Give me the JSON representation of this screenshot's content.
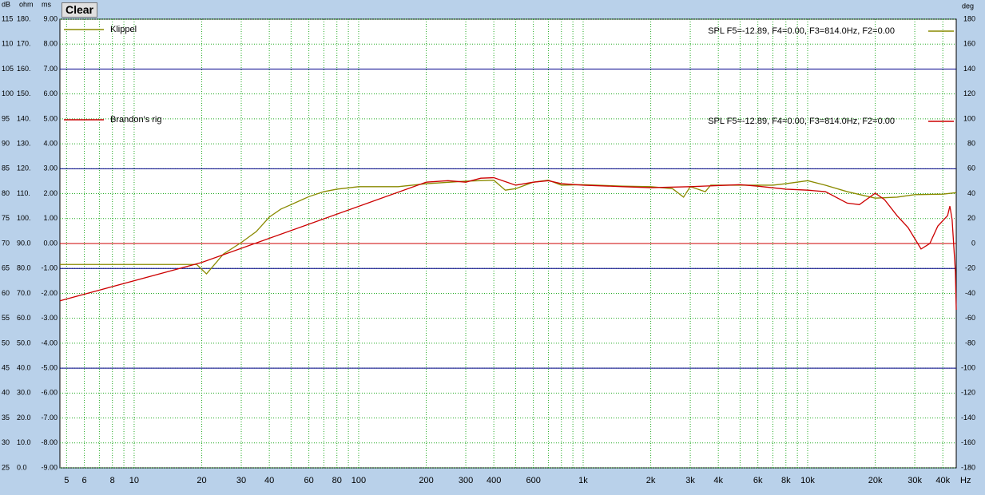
{
  "toolbar": {
    "clear": "Clear"
  },
  "chart_data": {
    "type": "line",
    "xscale": "log",
    "xlabel": "Hz",
    "axis_headers": {
      "db": "dB",
      "ohm": "ohm",
      "ms": "ms",
      "deg": "deg"
    },
    "xlim": [
      4.67,
      45900
    ],
    "xticks": [
      5,
      6,
      8,
      10,
      20,
      30,
      40,
      60,
      80,
      100,
      200,
      300,
      400,
      600,
      {
        "value": 1000,
        "label": "1k"
      },
      {
        "value": 2000,
        "label": "2k"
      },
      {
        "value": 3000,
        "label": "3k"
      },
      {
        "value": 4000,
        "label": "4k"
      },
      {
        "value": 6000,
        "label": "6k"
      },
      {
        "value": 8000,
        "label": "8k"
      },
      {
        "value": 10000,
        "label": "10k"
      },
      {
        "value": 20000,
        "label": "20k"
      },
      {
        "value": 30000,
        "label": "30k"
      },
      {
        "value": 40000,
        "label": "40k"
      }
    ],
    "xminorticks": [
      7,
      9,
      50,
      70,
      90,
      500,
      700,
      800,
      900,
      5000,
      7000,
      9000
    ],
    "ylim": [
      25,
      115
    ],
    "yticks": [
      115,
      110,
      105,
      100,
      95,
      90,
      85,
      80,
      75,
      70,
      65,
      60,
      55,
      50,
      45,
      40,
      35,
      30,
      25
    ],
    "ohmlim": [
      0,
      180
    ],
    "ohmticks": [
      {
        "value": 180,
        "label": "180."
      },
      {
        "value": 170,
        "label": "170."
      },
      {
        "value": 160,
        "label": "160."
      },
      {
        "value": 150,
        "label": "150."
      },
      {
        "value": 140,
        "label": "140."
      },
      {
        "value": 130,
        "label": "130."
      },
      {
        "value": 120,
        "label": "120."
      },
      {
        "value": 110,
        "label": "110."
      },
      {
        "value": 100,
        "label": "100."
      },
      {
        "value": 90,
        "label": "90.0"
      },
      {
        "value": 80,
        "label": "80.0"
      },
      {
        "value": 70,
        "label": "70.0"
      },
      {
        "value": 60,
        "label": "60.0"
      },
      {
        "value": 50,
        "label": "50.0"
      },
      {
        "value": 40,
        "label": "40.0"
      },
      {
        "value": 30,
        "label": "30.0"
      },
      {
        "value": 20,
        "label": "20.0"
      },
      {
        "value": 10,
        "label": "10.0"
      },
      {
        "value": 0,
        "label": "0.0"
      }
    ],
    "mslim": [
      -9,
      9
    ],
    "msticks": [
      {
        "value": 9,
        "label": "9.00"
      },
      {
        "value": 8,
        "label": "8.00"
      },
      {
        "value": 7,
        "label": "7.00"
      },
      {
        "value": 6,
        "label": "6.00"
      },
      {
        "value": 5,
        "label": "5.00"
      },
      {
        "value": 4,
        "label": "4.00"
      },
      {
        "value": 3,
        "label": "3.00"
      },
      {
        "value": 2,
        "label": "2.00"
      },
      {
        "value": 1,
        "label": "1.00"
      },
      {
        "value": 0,
        "label": "0.00"
      },
      {
        "value": -1,
        "label": "-1.00"
      },
      {
        "value": -2,
        "label": "-2.00"
      },
      {
        "value": -3,
        "label": "-3.00"
      },
      {
        "value": -4,
        "label": "-4.00"
      },
      {
        "value": -5,
        "label": "-5.00"
      },
      {
        "value": -6,
        "label": "-6.00"
      },
      {
        "value": -7,
        "label": "-7.00"
      },
      {
        "value": -8,
        "label": "-8.00"
      },
      {
        "value": -9,
        "label": "-9.00"
      }
    ],
    "y2lim": [
      -180,
      180
    ],
    "y2ticks": [
      180,
      160,
      140,
      120,
      100,
      80,
      60,
      40,
      20,
      0,
      -20,
      -40,
      -60,
      -80,
      -100,
      -120,
      -140,
      -160,
      -180
    ],
    "ref_lines": [
      {
        "value": 105,
        "color": "#00008b"
      },
      {
        "value": 85,
        "color": "#00008b"
      },
      {
        "value": 70,
        "color": "#cc0000"
      },
      {
        "value": 65,
        "color": "#00008b"
      },
      {
        "value": 45,
        "color": "#00008b"
      }
    ],
    "grid_color": "#22aa22",
    "series": [
      {
        "name": "Klippel",
        "color": "#8a8a00",
        "note": "SPL  F5=-12.89, F4=0.00, F3=814.0Hz, F2=0.00",
        "x": [
          4.67,
          10,
          19,
          21,
          25,
          30,
          35,
          40,
          45,
          50,
          60,
          70,
          80,
          100,
          150,
          200,
          300,
          400,
          450,
          500,
          600,
          700,
          800,
          1000,
          1500,
          2000,
          2500,
          2800,
          3000,
          3500,
          3700,
          5000,
          7000,
          8000,
          10000,
          12000,
          15000,
          20000,
          25000,
          30000,
          40000,
          45900
        ],
        "values": [
          65.8,
          65.8,
          65.8,
          63.9,
          67.9,
          70.2,
          72.4,
          75.3,
          76.9,
          77.8,
          79.4,
          80.4,
          80.9,
          81.4,
          81.4,
          82.0,
          82.5,
          82.7,
          80.7,
          81.0,
          82.3,
          82.7,
          81.7,
          81.8,
          81.5,
          81.4,
          81.0,
          79.3,
          81.4,
          80.4,
          81.7,
          81.7,
          81.7,
          82.0,
          82.6,
          81.7,
          80.4,
          79.1,
          79.3,
          79.8,
          79.9,
          80.2
        ]
      },
      {
        "name": "Brandon's rig",
        "color": "#cc0000",
        "note": "SPL  F5=-12.89, F4=0.00, F3=814.0Hz, F2=0.00",
        "x": [
          4.67,
          20,
          200,
          250,
          300,
          350,
          400,
          500,
          600,
          700,
          800,
          1000,
          1500,
          2000,
          3000,
          5000,
          6000,
          8000,
          10000,
          12000,
          15000,
          17000,
          20000,
          22000,
          25000,
          28000,
          32000,
          35000,
          38000,
          42000,
          43000,
          44000,
          45500,
          45900
        ],
        "values": [
          58.5,
          66.2,
          82.3,
          82.6,
          82.3,
          83.1,
          83.2,
          81.7,
          82.3,
          82.6,
          82.0,
          81.7,
          81.4,
          81.2,
          81.4,
          81.8,
          81.5,
          80.9,
          80.7,
          80.4,
          78.1,
          77.8,
          80.1,
          78.8,
          75.6,
          73.2,
          68.9,
          70.0,
          73.5,
          75.6,
          77.5,
          74.8,
          64.4,
          56.7
        ]
      }
    ]
  }
}
